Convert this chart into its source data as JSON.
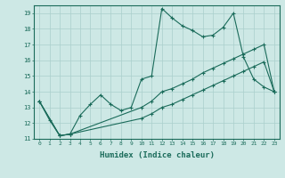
{
  "background_color": "#cde8e5",
  "grid_color": "#aacfcc",
  "line_color": "#1a6b5a",
  "xlabel": "Humidex (Indice chaleur)",
  "xlim": [
    -0.5,
    23.5
  ],
  "ylim": [
    11,
    19.5
  ],
  "yticks": [
    11,
    12,
    13,
    14,
    15,
    16,
    17,
    18,
    19
  ],
  "xticks": [
    0,
    1,
    2,
    3,
    4,
    5,
    6,
    7,
    8,
    9,
    10,
    11,
    12,
    13,
    14,
    15,
    16,
    17,
    18,
    19,
    20,
    21,
    22,
    23
  ],
  "line1_x": [
    0,
    1,
    2,
    3,
    4,
    5,
    6,
    7,
    8,
    9,
    10,
    11,
    12,
    13,
    14,
    15,
    16,
    17,
    18,
    19,
    20,
    21,
    22,
    23
  ],
  "line1_y": [
    13.4,
    12.2,
    11.2,
    11.3,
    12.5,
    13.2,
    13.8,
    13.2,
    12.8,
    13.0,
    14.8,
    15.0,
    19.3,
    18.7,
    18.2,
    17.9,
    17.5,
    17.6,
    18.1,
    19.0,
    16.2,
    14.8,
    14.3,
    14.0
  ],
  "line2_x": [
    0,
    2,
    3,
    10,
    11,
    12,
    13,
    14,
    15,
    16,
    17,
    18,
    19,
    20,
    21,
    22,
    23
  ],
  "line2_y": [
    13.4,
    11.2,
    11.3,
    13.0,
    13.4,
    14.0,
    14.2,
    14.5,
    14.8,
    15.2,
    15.5,
    15.8,
    16.1,
    16.4,
    16.7,
    17.0,
    14.0
  ],
  "line3_x": [
    0,
    2,
    3,
    10,
    11,
    12,
    13,
    14,
    15,
    16,
    17,
    18,
    19,
    20,
    21,
    22,
    23
  ],
  "line3_y": [
    13.4,
    11.2,
    11.3,
    12.3,
    12.6,
    13.0,
    13.2,
    13.5,
    13.8,
    14.1,
    14.4,
    14.7,
    15.0,
    15.3,
    15.6,
    15.9,
    14.0
  ]
}
